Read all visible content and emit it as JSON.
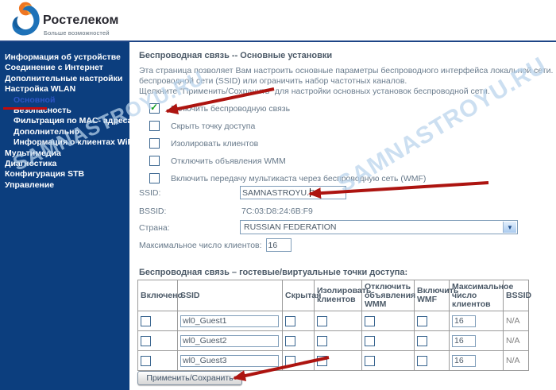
{
  "brand": {
    "name": "Ростелеком",
    "tagline": "Больше возможностей"
  },
  "watermark": {
    "text": "SAMNASTROYU.RU"
  },
  "sidebar": {
    "items": [
      {
        "label": "Информация об устройстве",
        "level": 0,
        "active": false
      },
      {
        "label": "Соединение с Интернет",
        "level": 0,
        "active": false
      },
      {
        "label": "Дополнительные настройки",
        "level": 0,
        "active": false
      },
      {
        "label": "Настройка WLAN",
        "level": 0,
        "active": false
      },
      {
        "label": "Основной",
        "level": 1,
        "active": true
      },
      {
        "label": "Безопасность",
        "level": 1,
        "active": false
      },
      {
        "label": "Фильтрация по MAC- адресам",
        "level": 1,
        "active": false
      },
      {
        "label": "Дополнительно",
        "level": 1,
        "active": false
      },
      {
        "label": "Информация о клиентах WiFi",
        "level": 1,
        "active": false
      },
      {
        "label": "Мультимедиа",
        "level": 0,
        "active": false
      },
      {
        "label": "Диагностика",
        "level": 0,
        "active": false
      },
      {
        "label": "Конфигурация STB",
        "level": 0,
        "active": false
      },
      {
        "label": "Управление",
        "level": 0,
        "active": false
      }
    ]
  },
  "main": {
    "title": "Беспроводная связь -- Основные установки",
    "description_lines": [
      "Эта страница позволяет Вам настроить основные параметры беспроводного интерфейса локальной сети. Вы можете включить или",
      "беспроводной сети (SSID) или ограничить набор частотных каналов.",
      "Щелкните \"Применить/Сохранить\" для настройки основных установок беспроводной сети."
    ],
    "checkboxes": [
      {
        "label": "Включить беспроводную связь",
        "checked": true
      },
      {
        "label": "Скрыть точку доступа",
        "checked": false
      },
      {
        "label": "Изолировать клиентов",
        "checked": false
      },
      {
        "label": "Отключить объявления WMM",
        "checked": false
      },
      {
        "label": "Включить передачу мультикаста через беспроводную сеть (WMF)",
        "checked": false
      }
    ],
    "fields": {
      "ssid_label": "SSID:",
      "ssid_value": "SAMNASTROYU.RU",
      "bssid_label": "BSSID:",
      "bssid_value": "7C:03:D8:24:6B:F9",
      "country_label": "Страна:",
      "country_value": "RUSSIAN FEDERATION",
      "max_clients_label": "Максимальное число клиентов:",
      "max_clients_value": "16"
    },
    "guest_table": {
      "title": "Беспроводная связь – гостевые/виртуальные точки доступа:",
      "headers": [
        "Включено",
        "SSID",
        "Скрытая",
        "Изолировать клиентов",
        "Отключить объявления WMM",
        "Включить WMF",
        "Максимальное число клиентов",
        "BSSID"
      ],
      "rows": [
        {
          "enabled": false,
          "ssid": "wl0_Guest1",
          "hidden": false,
          "isolate": false,
          "disable_wmm": false,
          "enable_wmf": false,
          "max_clients": "16",
          "bssid": "N/A"
        },
        {
          "enabled": false,
          "ssid": "wl0_Guest2",
          "hidden": false,
          "isolate": false,
          "disable_wmm": false,
          "enable_wmf": false,
          "max_clients": "16",
          "bssid": "N/A"
        },
        {
          "enabled": false,
          "ssid": "wl0_Guest3",
          "hidden": false,
          "isolate": false,
          "disable_wmm": false,
          "enable_wmf": false,
          "max_clients": "16",
          "bssid": "N/A"
        }
      ]
    },
    "apply_button": "Применить/Сохранить"
  },
  "colors": {
    "sidebar_bg": "#0c3e7e",
    "divider_blue": "#1d4586",
    "active_item": "#2e55c5",
    "annotation_red": "#ad1410",
    "watermark_blue": "#b9d4ec",
    "logo_blue": "#1e72b8",
    "logo_orange": "#ef7622",
    "check_green": "#14a01e"
  }
}
